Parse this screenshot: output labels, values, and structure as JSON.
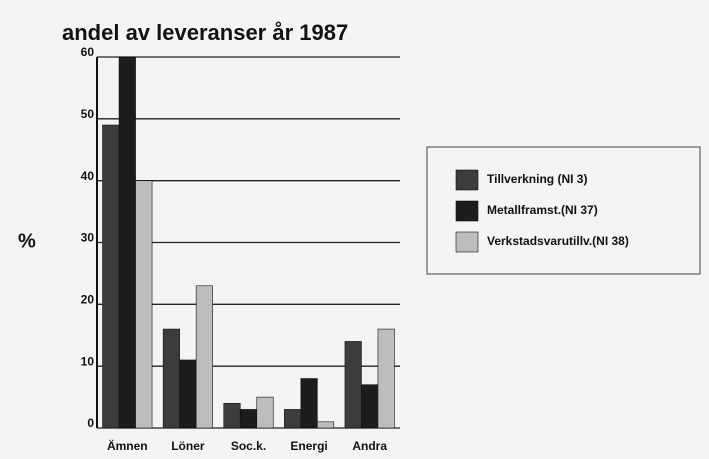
{
  "chart_data": {
    "type": "bar",
    "title": "andel av leveranser år 1987",
    "ylabel": "%",
    "categories": [
      "Ämnen",
      "Löner",
      "Soc.k.",
      "Energi",
      "Andra"
    ],
    "series": [
      {
        "name": "Tillverkning (NI 3)",
        "color": "#3c3c3c",
        "values": [
          49,
          16,
          4,
          3,
          14
        ]
      },
      {
        "name": "Metallframst.(NI 37)",
        "color": "#1c1c1c",
        "values": [
          60,
          11,
          3,
          8,
          7
        ]
      },
      {
        "name": "Verkstadsvarutillv.(NI 38)",
        "color": "#bdbdbd",
        "values": [
          40,
          23,
          5,
          1,
          16
        ]
      }
    ],
    "ylim": [
      0,
      60
    ],
    "yticks": [
      0,
      10,
      20,
      30,
      40,
      50,
      60
    ],
    "grid": true,
    "legend": "right"
  }
}
